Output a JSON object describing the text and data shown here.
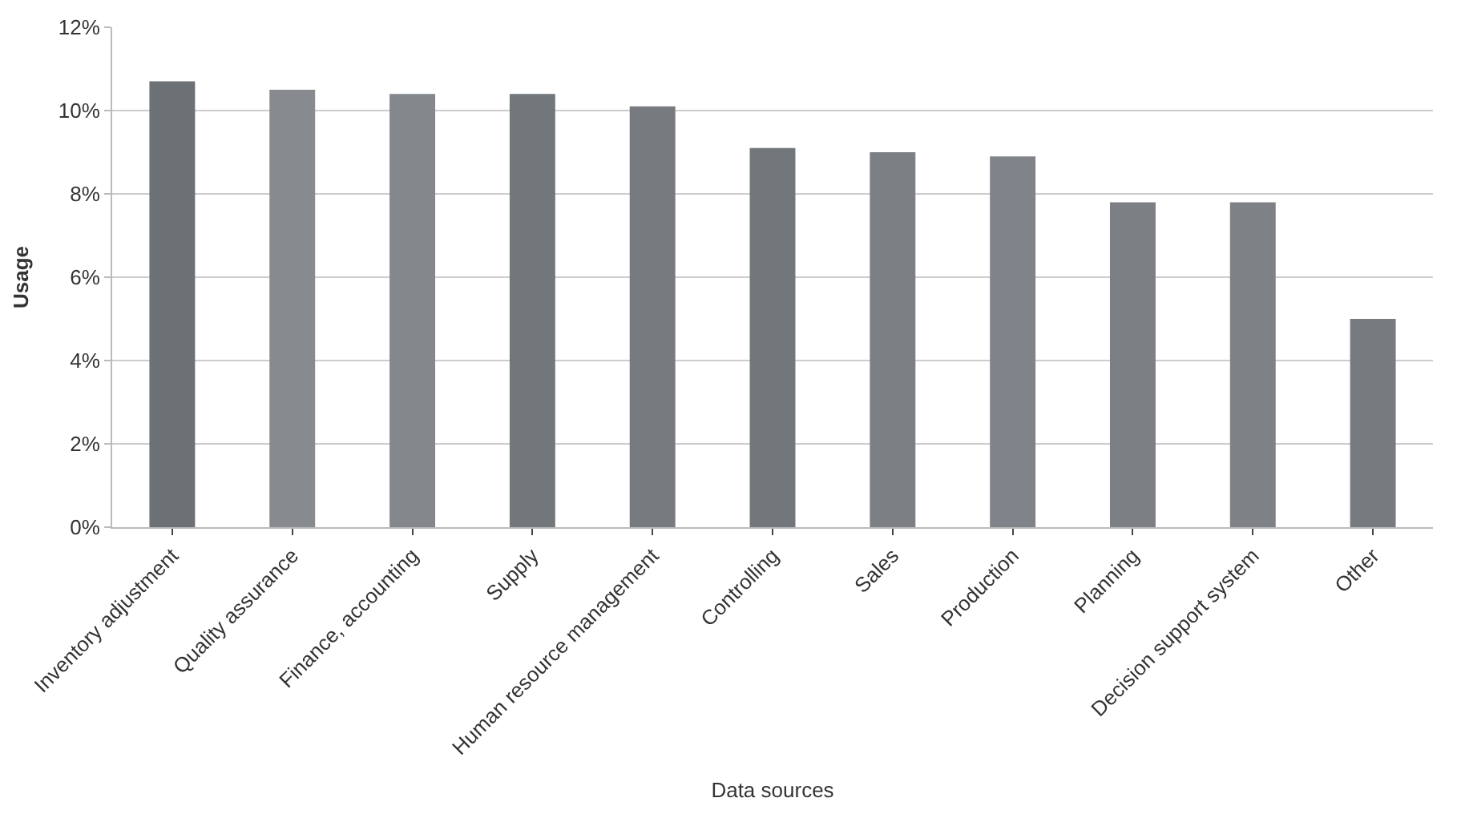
{
  "chart_data": {
    "type": "bar",
    "xlabel": "Data sources",
    "ylabel": "Usage",
    "categories": [
      "Inventory adjustment",
      "Quality assurance",
      "Finance, accounting",
      "Supply",
      "Human resource management",
      "Controlling",
      "Sales",
      "Production",
      "Planning",
      "Decision support system",
      "Other"
    ],
    "values": [
      10.7,
      10.5,
      10.4,
      10.4,
      10.1,
      9.1,
      9.0,
      8.9,
      7.8,
      7.8,
      5.0
    ],
    "colors": [
      "#6c7176",
      "#878b8f",
      "#84888c",
      "#72777c",
      "#777b80",
      "#72777c",
      "#7c8085",
      "#80848a",
      "#7c8085",
      "#7e8287",
      "#777b80"
    ],
    "ylim": [
      0,
      12
    ],
    "yticks": [
      {
        "value": 0,
        "label": "0%"
      },
      {
        "value": 2,
        "label": "2%"
      },
      {
        "value": 4,
        "label": "4%"
      },
      {
        "value": 6,
        "label": "6%"
      },
      {
        "value": 8,
        "label": "8%"
      },
      {
        "value": 10,
        "label": "10%"
      },
      {
        "value": 12,
        "label": "12%"
      }
    ],
    "grid": "y"
  }
}
